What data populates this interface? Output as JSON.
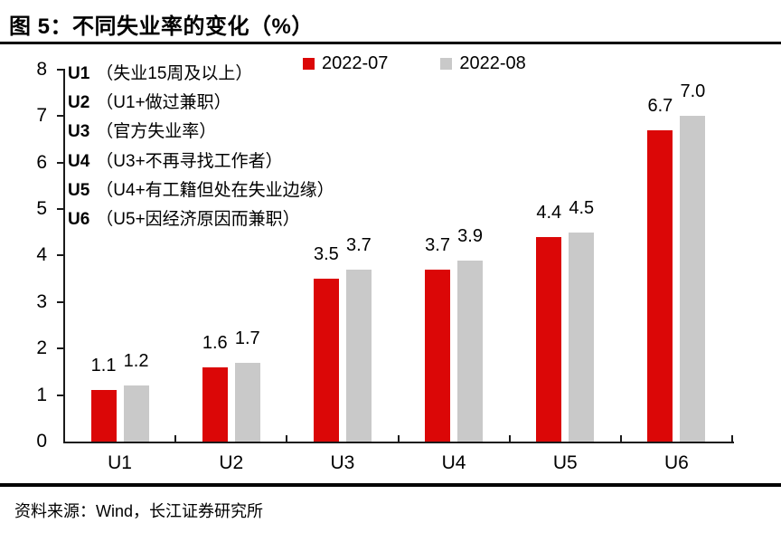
{
  "figure": {
    "title": "图 5：不同失业率的变化（%）",
    "source": "资料来源：Wind，长江证券研究所"
  },
  "colors": {
    "series_red": "#DB0707",
    "series_gray": "#C9C9C9",
    "axis": "#1a1a1a",
    "text": "#000000"
  },
  "chart_data": {
    "type": "bar",
    "title": "不同失业率的变化（%）",
    "categories": [
      "U1",
      "U2",
      "U3",
      "U4",
      "U5",
      "U6"
    ],
    "series": [
      {
        "name": "2022-07",
        "color": "#DB0707",
        "values": [
          1.1,
          1.6,
          3.5,
          3.7,
          4.4,
          6.7
        ]
      },
      {
        "name": "2022-08",
        "color": "#C9C9C9",
        "values": [
          1.2,
          1.7,
          3.7,
          3.9,
          4.5,
          7.0
        ]
      }
    ],
    "xlabel": "",
    "ylabel": "",
    "ylim": [
      0,
      8
    ],
    "yticks": [
      0,
      1,
      2,
      3,
      4,
      5,
      6,
      7,
      8
    ],
    "grid": false,
    "legend_position": "top",
    "data_labels": true,
    "annotations": [
      {
        "label": "U1",
        "desc": "（失业15周及以上）"
      },
      {
        "label": "U2",
        "desc": "（U1+做过兼职）"
      },
      {
        "label": "U3",
        "desc": "（官方失业率）"
      },
      {
        "label": "U4",
        "desc": "（U3+不再寻找工作者）"
      },
      {
        "label": "U5",
        "desc": "（U4+有工籍但处在失业边缘）"
      },
      {
        "label": "U6",
        "desc": "（U5+因经济原因而兼职）"
      }
    ]
  }
}
